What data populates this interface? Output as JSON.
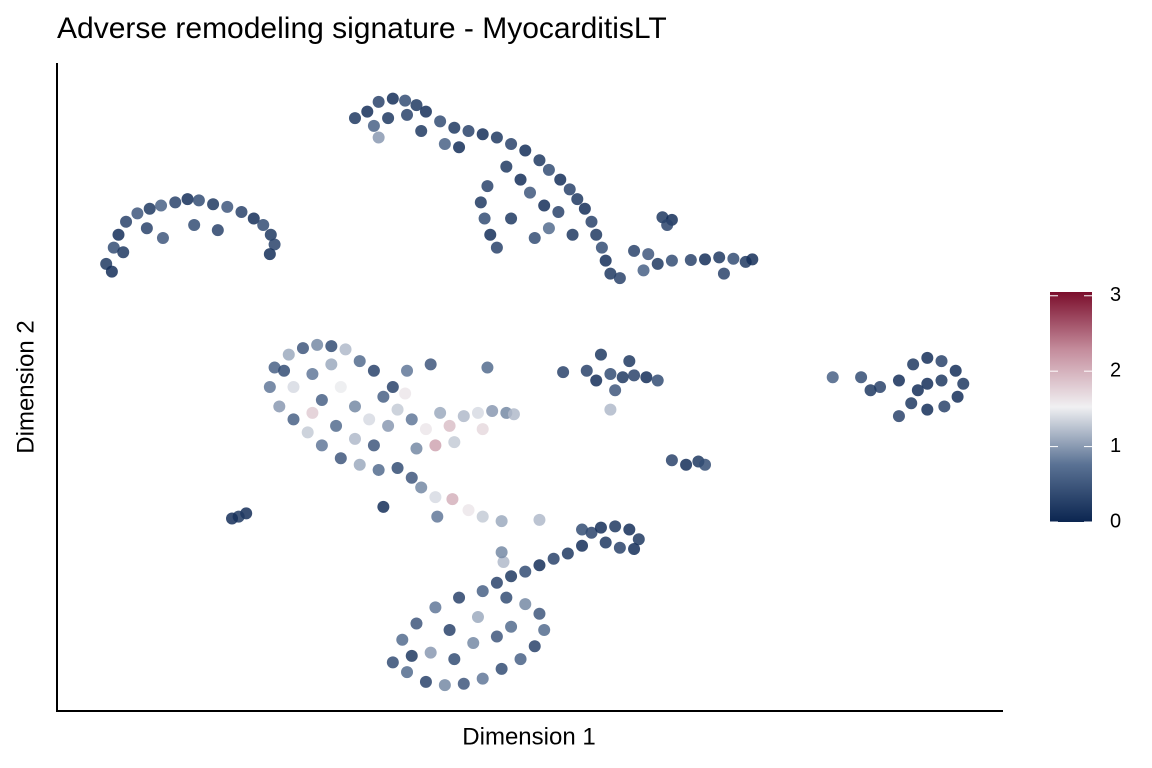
{
  "chart_data": {
    "type": "scatter",
    "title": "Adverse remodeling signature - MyocarditisLT",
    "x_label": "Dimension 1",
    "y_label": "Dimension 2",
    "xlim": [
      0,
      100
    ],
    "ylim": [
      0,
      100
    ],
    "colorlim": [
      0,
      3.05
    ],
    "colorticks": [
      0,
      1,
      2,
      3
    ],
    "colors": [
      "#0b2550",
      "#5a7294",
      "#f0f0f2",
      "#c48c9c",
      "#7b0e2c"
    ],
    "x": [
      5.2,
      6,
      6.5,
      7.3,
      8.5,
      9.8,
      11,
      12.5,
      13.8,
      15,
      16.5,
      18,
      19.5,
      20.8,
      21.8,
      22.6,
      23,
      22.5,
      7,
      9.5,
      11.2,
      14.5,
      17,
      5.8,
      31.5,
      32.8,
      34,
      35.5,
      36.8,
      38,
      33.5,
      35,
      37,
      39,
      40.5,
      42,
      43.5,
      45,
      46.5,
      48,
      49.5,
      51,
      52,
      53.2,
      54.2,
      55,
      55.8,
      56.5,
      57,
      57.6,
      58,
      58.5,
      59.5,
      47.5,
      49,
      45.5,
      44.8,
      45.2,
      45.8,
      46.5,
      48,
      50,
      51.5,
      53,
      52,
      54.5,
      50.5,
      41,
      38.5,
      42.5,
      34,
      64,
      65,
      64.5,
      61,
      62.5,
      63.5,
      65,
      67,
      68.5,
      70,
      71.5,
      72.8,
      73.5,
      70.5,
      62,
      22.5,
      23,
      24.5,
      26,
      27.5,
      29,
      30.5,
      32,
      33.5,
      23.5,
      25,
      26.5,
      28,
      30,
      32,
      34,
      36,
      25,
      27,
      29,
      28,
      30,
      31.5,
      27,
      29.5,
      31.5,
      33.5,
      35,
      36,
      37.5,
      39,
      40.5,
      41.5,
      43,
      44.5,
      46,
      47.5,
      48.3,
      45,
      42,
      38,
      34.5,
      33,
      24,
      35.5,
      37,
      39.5,
      45.5,
      36.8,
      40,
      37.5,
      38.5,
      40,
      41.8,
      43.5,
      45,
      47,
      51,
      34.5,
      40.2,
      20,
      19.2,
      18.5,
      56,
      57,
      58.5,
      59.8,
      61,
      62.3,
      63.5,
      57.5,
      60.5,
      59,
      58.5,
      53.5,
      65,
      66.5,
      67.8,
      68.5,
      89,
      90.5,
      92,
      93.5,
      95,
      95.8,
      95.2,
      93.8,
      92,
      90.3,
      92,
      93.5,
      91,
      87,
      85,
      82,
      86,
      89,
      35.5,
      37,
      39,
      41,
      43,
      45,
      47,
      49,
      50.5,
      51.5,
      51,
      49.5,
      47.5,
      45,
      42.5,
      40,
      38,
      36.5,
      39.5,
      42,
      44,
      46.5,
      48,
      41.5,
      44.5,
      37.5,
      46.5,
      48,
      49.5,
      51,
      52.5,
      54,
      55.5,
      47.2,
      47,
      56.5,
      57.5,
      59,
      60.5,
      61.5,
      61,
      59.5,
      58,
      55.5
    ],
    "y": [
      69,
      71.5,
      73.5,
      75.5,
      76.8,
      77.5,
      78,
      78.5,
      79,
      78.8,
      78.2,
      77.8,
      77,
      76,
      75,
      73.5,
      72,
      70.5,
      70.8,
      74.5,
      73,
      75,
      74.2,
      67.8,
      91.5,
      92.5,
      94,
      94.5,
      94.2,
      93.5,
      90.3,
      91.5,
      92,
      92.5,
      91,
      90,
      89.5,
      89,
      88.5,
      87.5,
      86.5,
      85,
      83.5,
      82,
      80.5,
      79,
      77.5,
      75.5,
      73.5,
      71.5,
      69.5,
      67.5,
      66.8,
      84,
      82,
      81,
      78.5,
      76,
      73.5,
      71.5,
      76,
      80,
      78,
      77,
      74.5,
      73.5,
      73,
      87.5,
      89.5,
      87,
      88.5,
      76.2,
      75.8,
      75,
      71,
      70.5,
      69,
      69.5,
      69.6,
      69.7,
      70,
      69.8,
      69.3,
      69.7,
      67.5,
      68,
      50,
      53,
      55,
      56,
      56.5,
      56.3,
      55.8,
      54,
      52.5,
      47,
      45,
      43,
      41,
      39,
      38,
      37.2,
      37.5,
      50,
      52,
      53.5,
      48,
      50,
      47,
      46,
      44,
      42,
      41,
      44,
      46.5,
      45,
      43.5,
      46,
      44,
      45.5,
      46,
      46.3,
      46,
      45.8,
      43.5,
      41.5,
      40.5,
      48.5,
      45,
      52.5,
      50,
      52.5,
      53.5,
      53,
      49,
      41,
      36,
      34.5,
      33,
      32.7,
      31,
      30,
      29.3,
      29.5,
      31.5,
      30,
      30.5,
      30,
      29.7,
      52.5,
      51,
      52,
      51.5,
      51.8,
      51.5,
      51,
      55,
      54,
      49.5,
      46.5,
      52.3,
      38.7,
      38,
      38.5,
      38,
      51,
      53.5,
      54.5,
      54,
      52.5,
      50.5,
      48.5,
      47,
      46.5,
      47.5,
      50.5,
      51,
      49.5,
      50,
      51.5,
      51.5,
      49.5,
      45.5,
      7.5,
      6,
      4.5,
      4,
      4.2,
      5,
      6.5,
      8,
      10,
      12.5,
      15,
      16.5,
      17.5,
      18.5,
      17.5,
      16,
      13.5,
      11,
      9,
      8,
      10.5,
      11.5,
      13,
      12.5,
      14.5,
      8.5,
      19.8,
      20.8,
      21.5,
      22.5,
      23.5,
      24.3,
      25.5,
      23,
      24.5,
      27.5,
      28.3,
      28.5,
      28,
      26.5,
      25,
      25.2,
      26,
      28
    ],
    "values": [
      0.2,
      0.4,
      0.1,
      0.3,
      0.5,
      0.2,
      0.6,
      0.3,
      0.1,
      0.4,
      0.2,
      0.5,
      0.3,
      0.1,
      0.4,
      0.2,
      0.3,
      0.1,
      0.2,
      0.3,
      0.5,
      0.4,
      0.3,
      0.1,
      0.2,
      0.1,
      0.3,
      0.1,
      0.4,
      0.2,
      0.6,
      0.2,
      0.3,
      0.1,
      0.4,
      0.2,
      0.3,
      0.1,
      0.2,
      0.3,
      0.1,
      0.2,
      0.4,
      0.1,
      0.3,
      0.2,
      0.1,
      0.3,
      0.2,
      0.4,
      0.1,
      0.2,
      0.3,
      0.2,
      0.1,
      0.3,
      0.2,
      0.4,
      0.1,
      0.3,
      0.2,
      0.5,
      0.1,
      0.3,
      0.7,
      0.2,
      0.4,
      0.6,
      0.2,
      0.1,
      1.0,
      0.2,
      0.1,
      0.3,
      0.3,
      0.5,
      0.2,
      0.4,
      0.3,
      0.1,
      0.2,
      0.4,
      0.2,
      0.1,
      0.3,
      0.6,
      0.8,
      0.6,
      1.1,
      0.5,
      0.9,
      0.4,
      1.2,
      0.7,
      0.3,
      1.0,
      0.6,
      1.3,
      0.8,
      0.5,
      1.1,
      0.7,
      0.4,
      1.4,
      0.8,
      1.1,
      0.6,
      1.5,
      0.9,
      1.8,
      0.7,
      1.2,
      0.5,
      1.0,
      1.3,
      0.8,
      1.6,
      1.1,
      1.9,
      1.2,
      1.4,
      1.0,
      0.9,
      1.2,
      1.7,
      1.3,
      0.9,
      0.6,
      1.4,
      0.4,
      0.3,
      0.8,
      0.5,
      0.7,
      1.6,
      2.1,
      0.5,
      0.9,
      1.4,
      2.0,
      1.6,
      1.3,
      1.1,
      1.2,
      0.1,
      0.8,
      0.1,
      0.2,
      0.1,
      0.3,
      0.1,
      0.4,
      0.2,
      0.3,
      0.1,
      0.4,
      0.2,
      0.2,
      0.5,
      1.2,
      0.3,
      0.3,
      0.1,
      0.2,
      0.4,
      0.1,
      0.2,
      0.1,
      0.3,
      0.1,
      0.2,
      0.1,
      0.3,
      0.1,
      0.2,
      0.1,
      0.2,
      0.1,
      0.3,
      0.4,
      0.6,
      0.2,
      0.3,
      0.4,
      0.7,
      0.3,
      0.9,
      0.5,
      0.8,
      0.4,
      0.6,
      0.3,
      0.7,
      0.5,
      0.9,
      0.4,
      0.6,
      0.3,
      0.8,
      0.5,
      0.7,
      1.0,
      0.4,
      0.9,
      0.5,
      0.7,
      0.3,
      1.1,
      0.2,
      0.3,
      0.2,
      0.4,
      0.1,
      0.3,
      0.2,
      0.1,
      1.2,
      0.9,
      0.3,
      0.1,
      0.2,
      0.1,
      0.2,
      0.1,
      0.3,
      0.2,
      0.4
    ]
  }
}
